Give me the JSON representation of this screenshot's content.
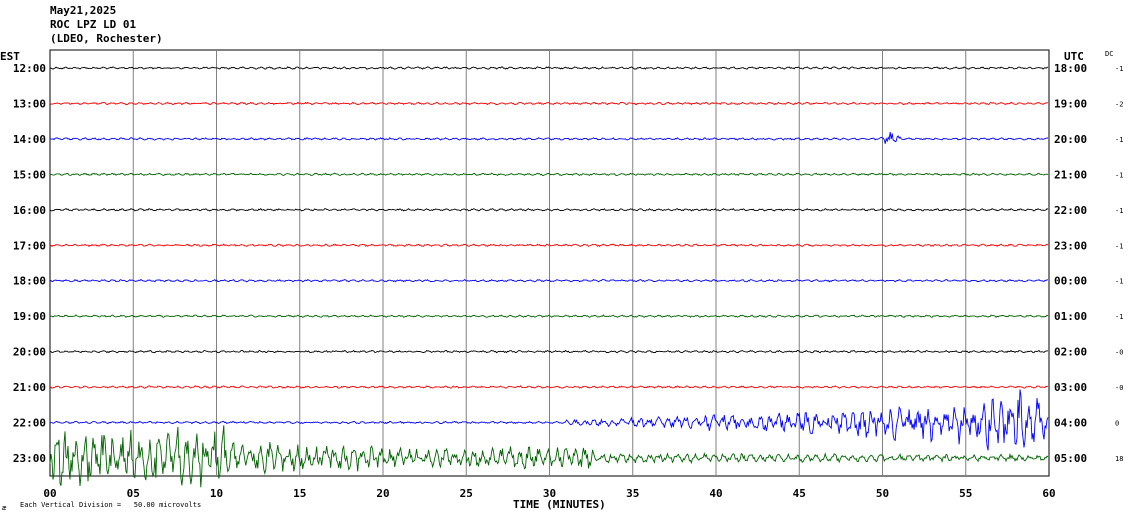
{
  "header": {
    "date": "May21,2025",
    "station": "ROC LPZ LD 01",
    "network": "(LDEO, Rochester)"
  },
  "chart_data": {
    "type": "line",
    "left_axis_title": "EST",
    "right_axis_title": "UTC",
    "dc_title": "DC",
    "xlabel": "TIME (MINUTES)",
    "xlim": [
      0,
      60
    ],
    "x_ticks": [
      "00",
      "05",
      "10",
      "15",
      "20",
      "25",
      "30",
      "35",
      "40",
      "45",
      "50",
      "55",
      "60"
    ],
    "scale_note": "Each Vertical Division =   50.00 microvolts",
    "corner_mark": "æ",
    "trace_colors": [
      "#000000",
      "#ff0000",
      "#0000ff",
      "#006400"
    ],
    "rows": [
      {
        "est": "12:00",
        "utc": "18:00",
        "dc": "-1",
        "activity": "quiet"
      },
      {
        "est": "13:00",
        "utc": "19:00",
        "dc": "-2",
        "activity": "quiet"
      },
      {
        "est": "14:00",
        "utc": "20:00",
        "dc": "-1",
        "activity": "quiet",
        "event_minute": 50.5
      },
      {
        "est": "15:00",
        "utc": "21:00",
        "dc": "-1",
        "activity": "quiet"
      },
      {
        "est": "16:00",
        "utc": "22:00",
        "dc": "-1",
        "activity": "quiet"
      },
      {
        "est": "17:00",
        "utc": "23:00",
        "dc": "-1",
        "activity": "quiet"
      },
      {
        "est": "18:00",
        "utc": "00:00",
        "dc": "-1",
        "activity": "quiet"
      },
      {
        "est": "19:00",
        "utc": "01:00",
        "dc": "-1",
        "activity": "quiet"
      },
      {
        "est": "20:00",
        "utc": "02:00",
        "dc": "-0",
        "activity": "quiet"
      },
      {
        "est": "21:00",
        "utc": "03:00",
        "dc": "-0",
        "activity": "quiet"
      },
      {
        "est": "22:00",
        "utc": "04:00",
        "dc": "0",
        "activity": "increasing_from_minute_31"
      },
      {
        "est": "23:00",
        "utc": "05:00",
        "dc": "18",
        "activity": "strong_early_decaying",
        "end_minute": 60
      }
    ]
  }
}
